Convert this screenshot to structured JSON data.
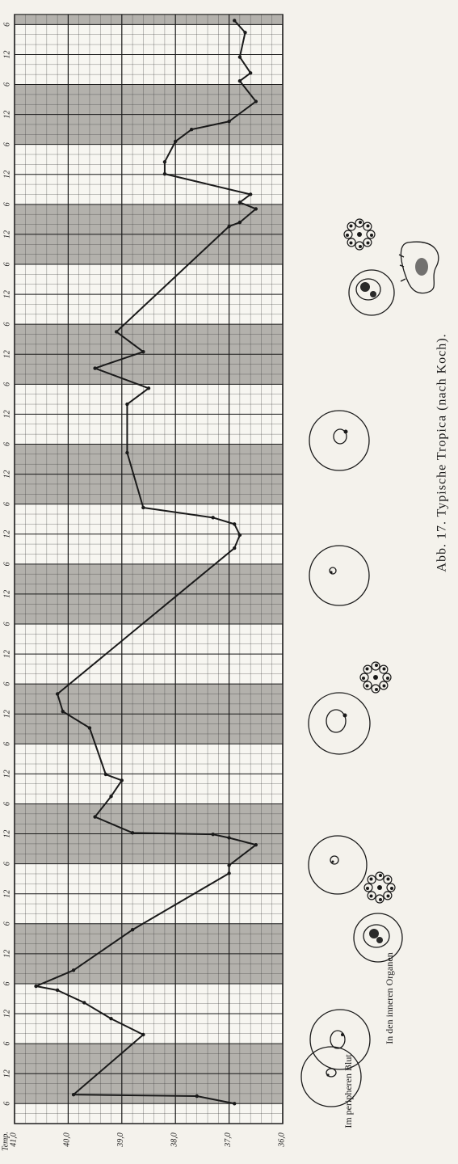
{
  "chart_data": {
    "type": "line",
    "y_label": "Temp.",
    "annotations": [
      "Im peripheren Blut",
      "In den inneren Organen"
    ],
    "caption": "Abb. 17. Typische Tropica (nach Koch).",
    "x": [
      0,
      1.5,
      1.8,
      13.8,
      17,
      20.2,
      22.7,
      23.5,
      26.7,
      34.8,
      46.1,
      47.7,
      51.8,
      53.2,
      53.9,
      54.2,
      57.4,
      61.5,
      64.7,
      65.9,
      75.2,
      78.5,
      82,
      111.2,
      113.8,
      116,
      117.3,
      119.3,
      130.3,
      140,
      143.2,
      147.2,
      150.5,
      154.5,
      175.6,
      176.4,
      179.1,
      180.4,
      182,
      186.1,
      188.5,
      192.6,
      195,
      196.6,
      200.6,
      204.7,
      206.3,
      209.5,
      214.4,
      216.8
    ],
    "values": [
      36.9,
      37.6,
      39.9,
      38.6,
      39.2,
      39.7,
      40.2,
      40.6,
      39.9,
      38.8,
      37,
      37,
      36.5,
      37,
      37.3,
      38.8,
      39.5,
      39.2,
      39,
      39.3,
      39.6,
      40.1,
      40.2,
      36.9,
      36.8,
      36.9,
      37.3,
      38.6,
      38.9,
      38.9,
      38.5,
      39.5,
      38.6,
      39.1,
      37,
      36.8,
      36.5,
      36.8,
      36.6,
      38.2,
      38.2,
      38,
      37.7,
      37,
      36.5,
      36.8,
      36.6,
      36.8,
      36.7,
      36.9
    ],
    "color": "#1a1a1a",
    "xlim": [
      -4,
      218
    ],
    "xticks": [
      {
        "value": 0,
        "label": "6"
      },
      {
        "value": 6,
        "label": "12"
      },
      {
        "value": 12,
        "label": "6"
      },
      {
        "value": 18,
        "label": "12"
      },
      {
        "value": 24,
        "label": "6"
      },
      {
        "value": 30,
        "label": "12"
      },
      {
        "value": 36,
        "label": "6"
      },
      {
        "value": 42,
        "label": "12"
      },
      {
        "value": 48,
        "label": "6"
      },
      {
        "value": 54,
        "label": "12"
      },
      {
        "value": 60,
        "label": "6"
      },
      {
        "value": 66,
        "label": "12"
      },
      {
        "value": 72,
        "label": "6"
      },
      {
        "value": 78,
        "label": "12"
      },
      {
        "value": 84,
        "label": "6"
      },
      {
        "value": 90,
        "label": "12"
      },
      {
        "value": 96,
        "label": "6"
      },
      {
        "value": 102,
        "label": "12"
      },
      {
        "value": 108,
        "label": "6"
      },
      {
        "value": 114,
        "label": "12"
      },
      {
        "value": 120,
        "label": "6"
      },
      {
        "value": 126,
        "label": "12"
      },
      {
        "value": 132,
        "label": "6"
      },
      {
        "value": 138,
        "label": "12"
      },
      {
        "value": 144,
        "label": "6"
      },
      {
        "value": 150,
        "label": "12"
      },
      {
        "value": 156,
        "label": "6"
      },
      {
        "value": 162,
        "label": "12"
      },
      {
        "value": 168,
        "label": "6"
      },
      {
        "value": 174,
        "label": "12"
      },
      {
        "value": 180,
        "label": "6"
      },
      {
        "value": 186,
        "label": "12"
      },
      {
        "value": 192,
        "label": "6"
      },
      {
        "value": 198,
        "label": "12"
      },
      {
        "value": 204,
        "label": "6"
      },
      {
        "value": 210,
        "label": "12"
      },
      {
        "value": 216,
        "label": "6"
      }
    ],
    "ylim": [
      36,
      41
    ],
    "yticks": [
      {
        "value": 41,
        "label": "41,0"
      },
      {
        "value": 40,
        "label": "40,0"
      },
      {
        "value": 39,
        "label": "39,0"
      },
      {
        "value": 38,
        "label": "38,0"
      },
      {
        "value": 37,
        "label": "37,0"
      },
      {
        "value": 36,
        "label": "36,0"
      }
    ],
    "grid": true
  }
}
